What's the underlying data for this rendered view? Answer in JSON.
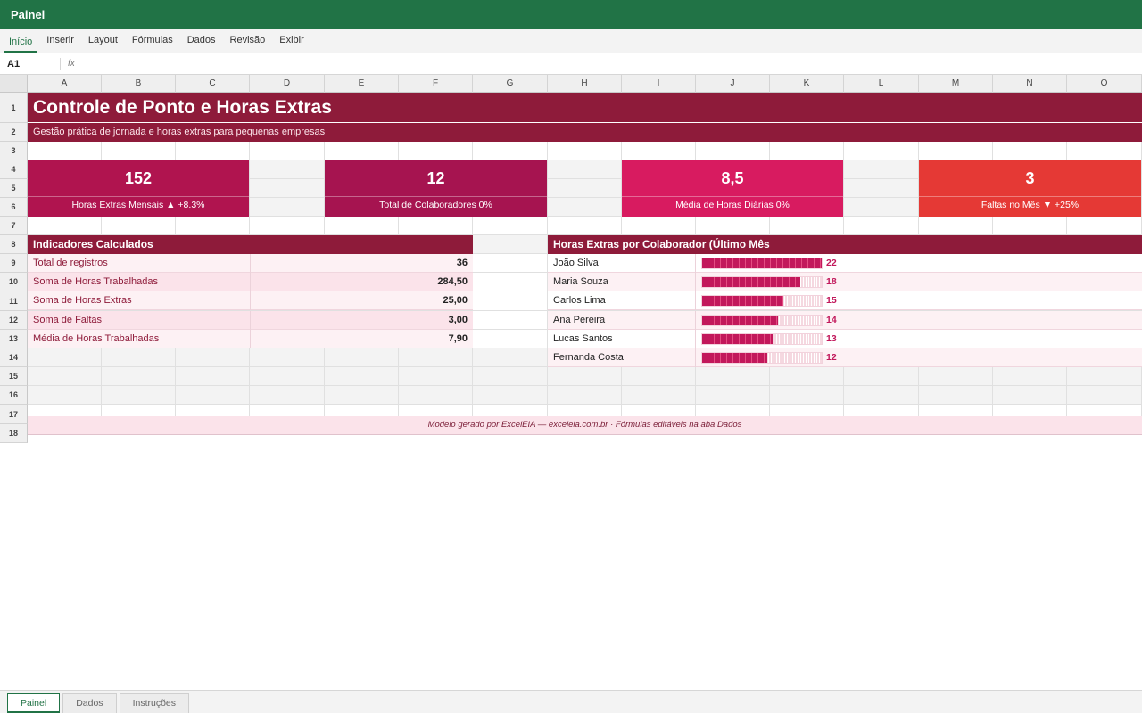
{
  "app": {
    "title": "Painel"
  },
  "ribbon": {
    "tabs": [
      "Início",
      "Inserir",
      "Layout",
      "Fórmulas",
      "Dados",
      "Revisão",
      "Exibir"
    ],
    "active": "Início"
  },
  "formula_bar": {
    "cell_ref": "A1",
    "fx_label": "fx",
    "content": ""
  },
  "columns": [
    "A",
    "B",
    "C",
    "D",
    "E",
    "F",
    "G",
    "H",
    "I",
    "J",
    "K",
    "L",
    "M",
    "N",
    "O"
  ],
  "rows": [
    "1",
    "2",
    "3",
    "4",
    "5",
    "6",
    "7",
    "8",
    "9",
    "10",
    "11",
    "12",
    "13",
    "14",
    "15",
    "16",
    "17",
    "18"
  ],
  "sheet": {
    "title": "Controle de Ponto e Horas Extras",
    "subtitle": "Gestão prática de jornada e horas extras para pequenas empresas",
    "kpis": [
      {
        "value": "152",
        "label": "Horas Extras Mensais ▲ +8.3%",
        "color": "#b0144f"
      },
      {
        "value": "12",
        "label": "Total de Colaboradores 0%",
        "color": "#a61450"
      },
      {
        "value": "8,5",
        "label": "Média de Horas Diárias 0%",
        "color": "#d81b60"
      },
      {
        "value": "3",
        "label": "Faltas no Mês ▼ +25%",
        "color": "#e53935"
      }
    ],
    "indicators": {
      "header": "Indicadores Calculados",
      "rows": [
        {
          "label": "Total de registros",
          "value": "36"
        },
        {
          "label": "Soma de Horas Trabalhadas",
          "value": "284,50"
        },
        {
          "label": "Soma de Horas Extras",
          "value": "25,00"
        },
        {
          "label": "Soma de Faltas",
          "value": "3,00"
        },
        {
          "label": "Média de Horas Trabalhadas",
          "value": "7,90"
        }
      ]
    },
    "overtime": {
      "header": "Horas Extras por Colaborador (Último Mês",
      "max": 22,
      "rows": [
        {
          "name": "João Silva",
          "value": 22
        },
        {
          "name": "Maria Souza",
          "value": 18
        },
        {
          "name": "Carlos Lima",
          "value": 15
        },
        {
          "name": "Ana Pereira",
          "value": 14
        },
        {
          "name": "Lucas Santos",
          "value": 13
        },
        {
          "name": "Fernanda Costa",
          "value": 12
        }
      ]
    },
    "footer": "Modelo gerado por ExcelEIA — exceleia.com.br · Fórmulas editáveis na aba Dados"
  },
  "sheet_tabs": [
    "Painel",
    "Dados",
    "Instruções"
  ],
  "active_sheet": "Painel",
  "colors": {
    "accent": "#217346",
    "brand_dark": "#8e1b3a",
    "bar": "#c2185b"
  }
}
